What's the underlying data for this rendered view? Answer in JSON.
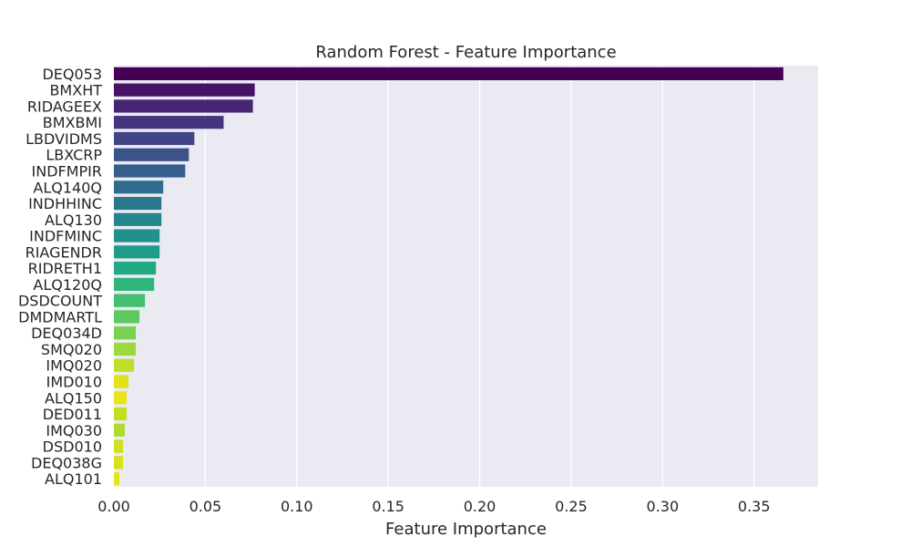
{
  "chart_data": {
    "type": "bar",
    "orientation": "horizontal",
    "title": "Random Forest - Feature Importance",
    "xlabel": "Feature Importance",
    "ylabel": "",
    "xlim": [
      0,
      0.385
    ],
    "xticks": [
      0.0,
      0.05,
      0.1,
      0.15,
      0.2,
      0.25,
      0.3,
      0.35
    ],
    "xtick_labels": [
      "0.00",
      "0.05",
      "0.10",
      "0.15",
      "0.20",
      "0.25",
      "0.30",
      "0.35"
    ],
    "grid": "vertical",
    "palette": "viridis",
    "background": "#eaeaf2",
    "categories": [
      "DEQ053",
      "BMXHT",
      "RIDAGEEX",
      "BMXBMI",
      "LBDVIDMS",
      "LBXCRP",
      "INDFMPIR",
      "ALQ140Q",
      "INDHHINC",
      "ALQ130",
      "INDFMINC",
      "RIAGENDR",
      "RIDRETH1",
      "ALQ120Q",
      "DSDCOUNT",
      "DMDMARTL",
      "DEQ034D",
      "SMQ020",
      "IMQ020",
      "IMD010",
      "ALQ150",
      "DED011",
      "IMQ030",
      "DSD010",
      "DEQ038G",
      "ALQ101"
    ],
    "values": [
      0.366,
      0.077,
      0.076,
      0.06,
      0.044,
      0.041,
      0.039,
      0.027,
      0.026,
      0.026,
      0.025,
      0.025,
      0.023,
      0.022,
      0.017,
      0.014,
      0.012,
      0.012,
      0.011,
      0.008,
      0.007,
      0.007,
      0.006,
      0.005,
      0.005,
      0.003
    ],
    "colors": [
      "#440154",
      "#471365",
      "#482475",
      "#463480",
      "#414487",
      "#3b528b",
      "#355f8d",
      "#2f6c8e",
      "#2a788e",
      "#25848e",
      "#21918c",
      "#1e9c89",
      "#22a884",
      "#2fb47c",
      "#44bf70",
      "#5ec962",
      "#7ad151",
      "#9bd93c",
      "#bddf26",
      "#dfe318",
      "#e8e419",
      "#c2df23",
      "#addc30",
      "#cde11d",
      "#d8e219",
      "#e2e418"
    ]
  }
}
